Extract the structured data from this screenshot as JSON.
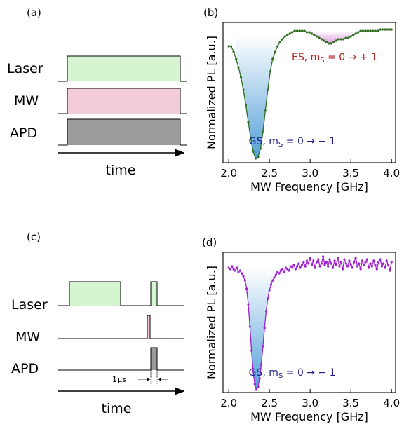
{
  "panels": {
    "a": {
      "label": "(a)",
      "rows": [
        {
          "name": "Laser",
          "color": "#d4f5d0"
        },
        {
          "name": "MW",
          "color": "#f4ccd9"
        },
        {
          "name": "APD",
          "color": "#9b9b9b"
        }
      ],
      "time_label": "time"
    },
    "c": {
      "label": "(c)",
      "rows": [
        {
          "name": "Laser",
          "color": "#d4f5d0"
        },
        {
          "name": "MW",
          "color": "#f4ccd9"
        },
        {
          "name": "APD",
          "color": "#9b9b9b"
        }
      ],
      "time_label": "time",
      "duration_annotation": "1μs"
    },
    "b": {
      "label": "(b)"
    },
    "d": {
      "label": "(d)"
    }
  },
  "chart_data": [
    {
      "panel": "b",
      "type": "line",
      "xlabel": "MW Frequency [GHz]",
      "ylabel": "Normalized PL [a.u.]",
      "xlim": [
        1.93,
        4.05
      ],
      "ylim": [
        0.0,
        1.0
      ],
      "xticks": [
        "2.0",
        "2.5",
        "3.0",
        "3.5",
        "4.0"
      ],
      "yticks": [],
      "line_color": "#2e6e1e",
      "marker_color": "#2e6e1e",
      "fill_colors": {
        "GS": "#4a9bd6",
        "ES": "#d070d0"
      },
      "annotations": [
        {
          "text_main": "ES, m",
          "text_sub": "S",
          "text_rest": " = 0 → + 1",
          "color": "#b22222",
          "x": 3.3,
          "y": 0.73
        },
        {
          "text_main": "GS, m",
          "text_sub": "S",
          "text_rest": " = 0 → − 1",
          "color": "#1f1f8c",
          "x": 2.78,
          "y": 0.13
        }
      ],
      "series": [
        {
          "x": [
            2.0,
            2.03,
            2.06,
            2.09,
            2.12,
            2.15,
            2.18,
            2.21,
            2.24,
            2.27,
            2.3,
            2.33,
            2.36,
            2.39,
            2.42,
            2.45,
            2.48,
            2.51,
            2.54,
            2.57,
            2.6,
            2.63,
            2.66,
            2.69,
            2.72,
            2.75,
            2.78,
            2.81,
            2.84,
            2.87,
            2.9,
            2.93,
            2.96,
            2.99,
            3.02,
            3.05,
            3.08,
            3.11,
            3.14,
            3.17,
            3.2,
            3.23,
            3.26,
            3.29,
            3.32,
            3.35,
            3.38,
            3.41,
            3.44,
            3.47,
            3.5,
            3.53,
            3.56,
            3.59,
            3.62,
            3.65,
            3.68,
            3.71,
            3.74,
            3.77,
            3.8,
            3.83,
            3.86,
            3.89,
            3.92,
            3.95,
            3.98,
            4.0
          ],
          "y": [
            0.83,
            0.83,
            0.79,
            0.74,
            0.68,
            0.61,
            0.52,
            0.41,
            0.29,
            0.17,
            0.08,
            0.03,
            0.04,
            0.1,
            0.22,
            0.37,
            0.52,
            0.65,
            0.74,
            0.79,
            0.83,
            0.86,
            0.88,
            0.9,
            0.91,
            0.92,
            0.93,
            0.94,
            0.94,
            0.94,
            0.94,
            0.94,
            0.93,
            0.93,
            0.92,
            0.91,
            0.9,
            0.89,
            0.88,
            0.87,
            0.86,
            0.85,
            0.85,
            0.86,
            0.87,
            0.88,
            0.88,
            0.88,
            0.89,
            0.89,
            0.9,
            0.91,
            0.92,
            0.93,
            0.94,
            0.94,
            0.94,
            0.94,
            0.94,
            0.94,
            0.94,
            0.94,
            0.95,
            0.95,
            0.95,
            0.95,
            0.95,
            0.95
          ]
        }
      ]
    },
    {
      "panel": "d",
      "type": "line",
      "xlabel": "MW Frequency [GHz]",
      "ylabel": "Normalized PL [a.u.]",
      "xlim": [
        1.93,
        4.05
      ],
      "ylim": [
        0.0,
        1.0
      ],
      "xticks": [
        "2.0",
        "2.5",
        "3.0",
        "3.5",
        "4.0"
      ],
      "yticks": [],
      "line_color": "#a020d0",
      "marker_color": "#a020d0",
      "fill_colors": {
        "GS": "#4a9bd6"
      },
      "annotations": [
        {
          "text_main": "GS, m",
          "text_sub": "S",
          "text_rest": " = 0 → − 1",
          "color": "#1f1f8c",
          "x": 2.78,
          "y": 0.12
        }
      ],
      "series": [
        {
          "x": [
            2.0,
            2.02,
            2.04,
            2.06,
            2.08,
            2.1,
            2.12,
            2.14,
            2.16,
            2.18,
            2.2,
            2.22,
            2.24,
            2.26,
            2.28,
            2.3,
            2.32,
            2.34,
            2.36,
            2.38,
            2.4,
            2.42,
            2.44,
            2.46,
            2.48,
            2.5,
            2.52,
            2.54,
            2.56,
            2.58,
            2.6,
            2.62,
            2.64,
            2.66,
            2.68,
            2.7,
            2.72,
            2.74,
            2.76,
            2.78,
            2.8,
            2.82,
            2.84,
            2.86,
            2.88,
            2.9,
            2.92,
            2.94,
            2.96,
            2.98,
            3.0,
            3.02,
            3.04,
            3.06,
            3.08,
            3.1,
            3.12,
            3.14,
            3.16,
            3.18,
            3.2,
            3.22,
            3.24,
            3.26,
            3.28,
            3.3,
            3.32,
            3.34,
            3.36,
            3.38,
            3.4,
            3.42,
            3.44,
            3.46,
            3.48,
            3.5,
            3.52,
            3.54,
            3.56,
            3.58,
            3.6,
            3.62,
            3.64,
            3.66,
            3.68,
            3.7,
            3.72,
            3.74,
            3.76,
            3.78,
            3.8,
            3.82,
            3.84,
            3.86,
            3.88,
            3.9,
            3.92,
            3.94,
            3.96,
            3.98,
            4.0
          ],
          "y": [
            0.89,
            0.88,
            0.9,
            0.88,
            0.87,
            0.89,
            0.86,
            0.87,
            0.85,
            0.83,
            0.8,
            0.74,
            0.63,
            0.47,
            0.3,
            0.15,
            0.06,
            0.02,
            0.04,
            0.1,
            0.2,
            0.33,
            0.46,
            0.58,
            0.67,
            0.73,
            0.77,
            0.8,
            0.82,
            0.84,
            0.86,
            0.85,
            0.87,
            0.88,
            0.86,
            0.89,
            0.88,
            0.87,
            0.9,
            0.89,
            0.91,
            0.88,
            0.9,
            0.92,
            0.89,
            0.91,
            0.93,
            0.9,
            0.94,
            0.92,
            0.96,
            0.91,
            0.94,
            0.89,
            0.93,
            0.95,
            0.9,
            0.92,
            0.97,
            0.91,
            0.93,
            0.9,
            0.95,
            0.92,
            0.89,
            0.94,
            0.91,
            0.96,
            0.9,
            0.93,
            0.88,
            0.95,
            0.92,
            0.9,
            0.94,
            0.91,
            0.89,
            0.93,
            0.96,
            0.9,
            0.92,
            0.88,
            0.94,
            0.91,
            0.93,
            0.95,
            0.89,
            0.92,
            0.9,
            0.94,
            0.91,
            0.88,
            0.93,
            0.95,
            0.9,
            0.92,
            0.89,
            0.94,
            0.91,
            0.87,
            0.93
          ]
        }
      ]
    }
  ]
}
